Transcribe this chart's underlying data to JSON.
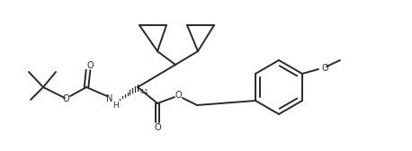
{
  "bg_color": "#ffffff",
  "line_color": "#2a2a2a",
  "line_width": 1.4,
  "font_size": 6.5,
  "fig_width": 4.58,
  "fig_height": 1.68,
  "dpi": 100,
  "xlim": [
    0,
    458
  ],
  "ylim": [
    0,
    168
  ]
}
